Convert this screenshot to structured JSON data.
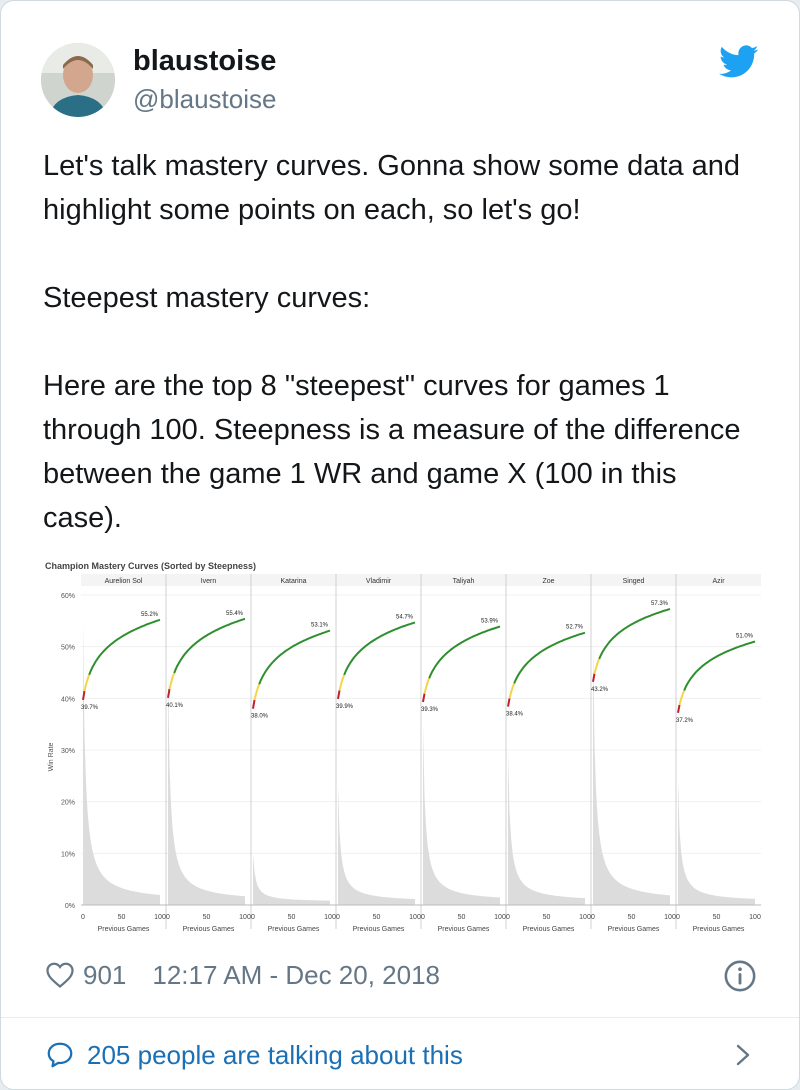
{
  "tweet": {
    "display_name": "blaustoise",
    "handle": "@blaustoise",
    "paragraphs": [
      "Let's talk mastery curves. Gonna show some data and highlight some points on each, so let's go!",
      "Steepest mastery curves:",
      "Here are the top 8 \"steepest\" curves for games 1 through 100. Steepness is a measure of the difference between the game 1 WR and game X (100 in this case)."
    ],
    "likes": "901",
    "timestamp": "12:17 AM - Dec 20, 2018",
    "talking": "205 people are talking about this",
    "icons": {
      "brand": "twitter-bird-icon",
      "like": "heart-icon",
      "info": "info-icon",
      "reply": "speech-bubble-icon",
      "more": "chevron-right-icon"
    },
    "colors": {
      "brand": "#1da1f2",
      "link": "#1b6fb5",
      "muted": "#657786"
    }
  },
  "chart_data": {
    "type": "line",
    "title": "Champion Mastery Curves (Sorted by Steepness)",
    "ylabel": "Win Rate",
    "xlabel": "Previous Games",
    "ylim": [
      0,
      60
    ],
    "y_ticks": [
      "60%",
      "50%",
      "40%",
      "30%",
      "20%",
      "10%",
      "0%"
    ],
    "x_ticks": [
      "0",
      "50",
      "100"
    ],
    "series": [
      {
        "name": "Aurelion Sol",
        "start": 39.7,
        "end": 55.2,
        "start_label": "39.7%",
        "end_label": "55.2%",
        "dist_peak": 55
      },
      {
        "name": "Ivern",
        "start": 40.1,
        "end": 55.4,
        "start_label": "40.1%",
        "end_label": "55.4%",
        "dist_peak": 45
      },
      {
        "name": "Katarina",
        "start": 38.0,
        "end": 53.1,
        "start_label": "38.0%",
        "end_label": "53.1%",
        "dist_peak": 10
      },
      {
        "name": "Vladimir",
        "start": 39.9,
        "end": 54.7,
        "start_label": "39.9%",
        "end_label": "54.7%",
        "dist_peak": 23
      },
      {
        "name": "Taliyah",
        "start": 39.3,
        "end": 53.9,
        "start_label": "39.3%",
        "end_label": "53.9%",
        "dist_peak": 35
      },
      {
        "name": "Zoe",
        "start": 38.4,
        "end": 52.7,
        "start_label": "38.4%",
        "end_label": "52.7%",
        "dist_peak": 30
      },
      {
        "name": "Singed",
        "start": 43.2,
        "end": 57.3,
        "start_label": "43.2%",
        "end_label": "57.3%",
        "dist_peak": 52
      },
      {
        "name": "Azir",
        "start": 37.2,
        "end": 51.0,
        "start_label": "37.2%",
        "end_label": "51.0%",
        "dist_peak": 24
      }
    ]
  }
}
